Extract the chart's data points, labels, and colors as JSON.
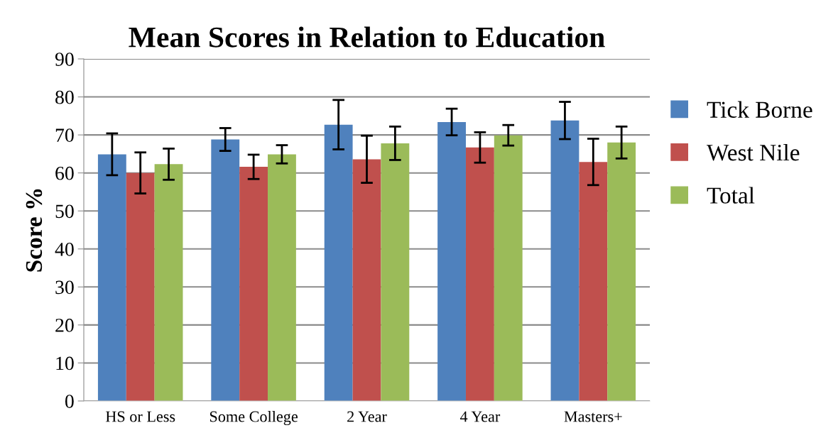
{
  "chart_data": {
    "type": "bar",
    "title": "Mean Scores in Relation to Education",
    "ylabel": "Score %",
    "categories": [
      "HS or Less",
      "Some College",
      "2 Year",
      "4 Year",
      "Masters+"
    ],
    "series": [
      {
        "name": "Tick Borne",
        "color": "#4f81bd",
        "values": [
          64.9,
          68.8,
          72.7,
          73.4,
          73.8
        ],
        "errors": [
          5.5,
          3.0,
          6.5,
          3.5,
          4.9
        ]
      },
      {
        "name": "West Nile",
        "color": "#c0504d",
        "values": [
          60.0,
          61.6,
          63.6,
          66.7,
          62.9
        ],
        "errors": [
          5.4,
          3.2,
          6.2,
          4.0,
          6.1
        ]
      },
      {
        "name": "Total",
        "color": "#9bbb59",
        "values": [
          62.3,
          64.9,
          67.8,
          69.9,
          68.0
        ],
        "errors": [
          4.1,
          2.4,
          4.4,
          2.7,
          4.2
        ]
      }
    ],
    "ylim": [
      0,
      90
    ],
    "yticks": [
      0,
      10,
      20,
      30,
      40,
      50,
      60,
      70,
      80,
      90
    ],
    "grid": "y",
    "legend": "right"
  }
}
